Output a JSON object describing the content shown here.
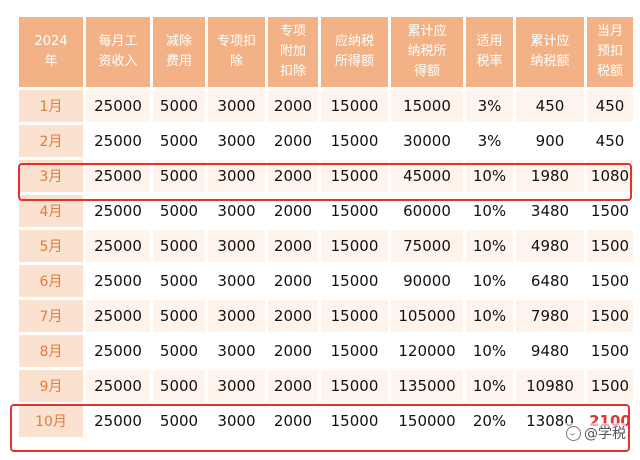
{
  "table": {
    "headers": [
      "2024\n年",
      "每月工\n资收入",
      "减除\n费用",
      "专项扣\n除",
      "专项\n附加\n扣除",
      "应纳税\n所得额",
      "累计应\n纳税所\n得额",
      "适用\n税率",
      "累计应\n纳税额",
      "当月\n预扣\n税额"
    ],
    "rows": [
      [
        "1月",
        "25000",
        "5000",
        "3000",
        "2000",
        "15000",
        "15000",
        "3%",
        "450",
        "450"
      ],
      [
        "2月",
        "25000",
        "5000",
        "3000",
        "2000",
        "15000",
        "30000",
        "3%",
        "900",
        "450"
      ],
      [
        "3月",
        "25000",
        "5000",
        "3000",
        "2000",
        "15000",
        "45000",
        "10%",
        "1980",
        "1080"
      ],
      [
        "4月",
        "25000",
        "5000",
        "3000",
        "2000",
        "15000",
        "60000",
        "10%",
        "3480",
        "1500"
      ],
      [
        "5月",
        "25000",
        "5000",
        "3000",
        "2000",
        "15000",
        "75000",
        "10%",
        "4980",
        "1500"
      ],
      [
        "6月",
        "25000",
        "5000",
        "3000",
        "2000",
        "15000",
        "90000",
        "10%",
        "6480",
        "1500"
      ],
      [
        "7月",
        "25000",
        "5000",
        "3000",
        "2000",
        "15000",
        "105000",
        "10%",
        "7980",
        "1500"
      ],
      [
        "8月",
        "25000",
        "5000",
        "3000",
        "2000",
        "15000",
        "120000",
        "10%",
        "9480",
        "1500"
      ],
      [
        "9月",
        "25000",
        "5000",
        "3000",
        "2000",
        "15000",
        "135000",
        "10%",
        "10980",
        "1500"
      ],
      [
        "10月",
        "25000",
        "5000",
        "3000",
        "2000",
        "15000",
        "150000",
        "20%",
        "13080",
        "2100"
      ]
    ]
  },
  "highlight": {
    "color": "#e23333",
    "rows": [
      "3月",
      "10月"
    ]
  },
  "colors": {
    "header_bg": "#f2b285",
    "month_bg": "#fbe1cf",
    "stripe_bg": "#fff4ec"
  },
  "watermark": {
    "text": "@学税",
    "icon": "chat-bubble-icon"
  }
}
